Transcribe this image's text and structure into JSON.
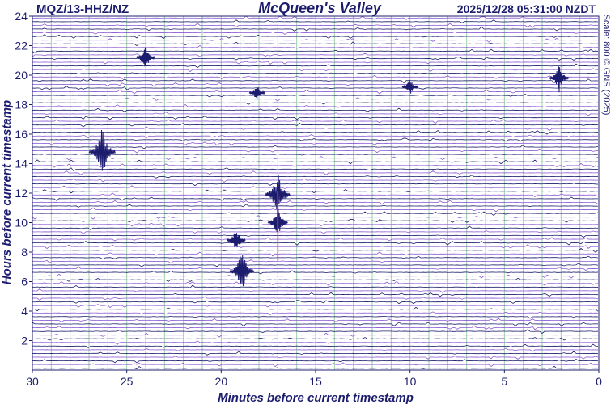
{
  "header": {
    "station": "MQZ/13-HHZ/NZ",
    "title": "McQueen's Valley",
    "timestamp": "2025/12/28 05:31:00 NZDT",
    "scale_note": "Scale: 800 © GNS (2025)"
  },
  "colors": {
    "trace_primary": "#1c1c6e",
    "trace_secondary": "#8a5ad6",
    "gridline": "#9fd0a8",
    "event_marker": "#e0407a"
  },
  "chart_data": {
    "type": "heatmap",
    "title": "McQueen's Valley",
    "xlabel": "Minutes before current timestamp",
    "ylabel": "Hours before current timestamp",
    "x_range": [
      30,
      0
    ],
    "y_range": [
      0,
      24
    ],
    "x_ticks": [
      30,
      25,
      20,
      15,
      10,
      5,
      0
    ],
    "y_ticks": [
      2,
      4,
      6,
      8,
      10,
      12,
      14,
      16,
      18,
      20,
      22,
      24
    ],
    "rows_per_hour": 4,
    "grid": true,
    "events": [
      {
        "minute": 26.3,
        "hour": 14.8,
        "amplitude": 1.0
      },
      {
        "minute": 18.9,
        "hour": 6.7,
        "amplitude": 0.85
      },
      {
        "minute": 19.2,
        "hour": 8.8,
        "amplitude": 0.5
      },
      {
        "minute": 17.0,
        "hour": 11.9,
        "amplitude": 0.9
      },
      {
        "minute": 17.0,
        "hour": 10.0,
        "amplitude": 0.6
      },
      {
        "minute": 24.0,
        "hour": 21.2,
        "amplitude": 0.5
      },
      {
        "minute": 2.1,
        "hour": 19.8,
        "amplitude": 0.55
      },
      {
        "minute": 18.1,
        "hour": 18.8,
        "amplitude": 0.35
      },
      {
        "minute": 10.0,
        "hour": 19.2,
        "amplitude": 0.35
      }
    ]
  }
}
